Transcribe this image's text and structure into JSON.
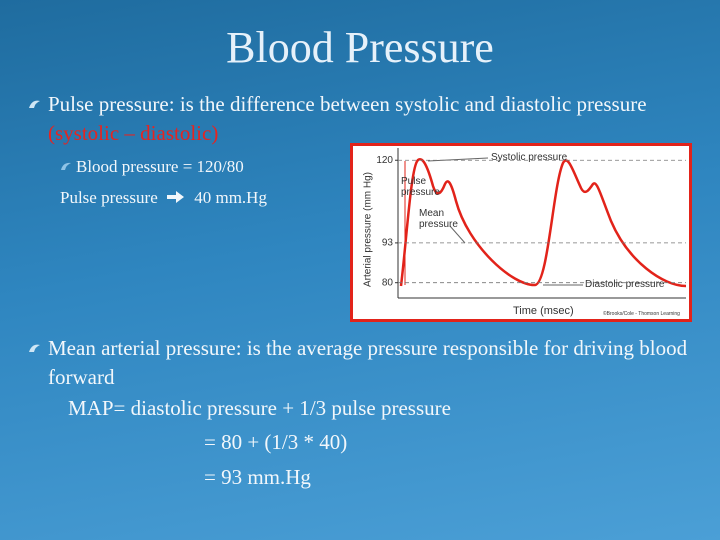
{
  "title": "Blood Pressure",
  "bullets": [
    {
      "text": "Pulse pressure: is the difference between systolic and diastolic pressure",
      "note": "(systolic – diastolic)"
    },
    {
      "text": "Mean arterial pressure: is the average pressure responsible for driving blood forward"
    }
  ],
  "sub_lines": [
    "Blood pressure = 120/80",
    "Pulse pressure",
    "40 mm.Hg"
  ],
  "formula": [
    "MAP= diastolic pressure + 1/3 pulse pressure",
    "= 80 + (1/3 * 40)",
    "= 93 mm.Hg"
  ],
  "figure": {
    "y_label": "Arterial pressure (mm Hg)",
    "x_label": "Time (msec)",
    "ylim": [
      75,
      124
    ],
    "yticks": [
      120,
      93,
      80
    ],
    "labels": [
      "Systolic pressure",
      "Pulse pressure",
      "Mean pressure",
      "Diastolic pressure"
    ],
    "credit": "©Brooks/Cole - Thomson Learning"
  }
}
